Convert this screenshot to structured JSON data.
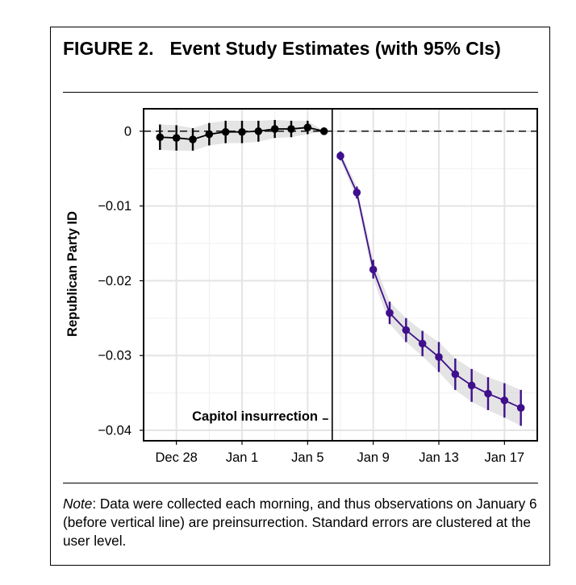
{
  "figure": {
    "label": "FIGURE 2.",
    "title": "Event Study Estimates (with 95% CIs)"
  },
  "note": {
    "lead": "Note",
    "text": ": Data were collected each morning, and thus observations on January 6 (before vertical line) are preinsurrection. Standard errors are clustered at the user level."
  },
  "chart_data": {
    "type": "line",
    "title": "Event Study Estimates (with 95% CIs)",
    "xlabel": "",
    "ylabel": "Republican Party ID",
    "x_ticks": [
      "Dec 28",
      "Jan 1",
      "Jan 5",
      "Jan 9",
      "Jan 13",
      "Jan 17"
    ],
    "y_ticks": [
      "0",
      "−0.01",
      "−0.02",
      "−0.03",
      "−0.04"
    ],
    "ylim": [
      -0.0414,
      0.003
    ],
    "xlim": [
      "Dec 26",
      "Jan 19"
    ],
    "grid": true,
    "reference_line": {
      "axis": "y",
      "value": 0,
      "style": "dashed"
    },
    "event_line": {
      "date": "Jan 6",
      "label": "Capitol insurrection"
    },
    "series": [
      {
        "segment": "pre",
        "color": "#000000",
        "points": [
          {
            "x": "Dec 27",
            "y": -0.0008,
            "lo": -0.0025,
            "hi": 0.0009
          },
          {
            "x": "Dec 28",
            "y": -0.0009,
            "lo": -0.0026,
            "hi": 0.0008
          },
          {
            "x": "Dec 29",
            "y": -0.0011,
            "lo": -0.0026,
            "hi": 0.0004
          },
          {
            "x": "Dec 30",
            "y": -0.0004,
            "lo": -0.0019,
            "hi": 0.0011
          },
          {
            "x": "Dec 31",
            "y": -0.0001,
            "lo": -0.0016,
            "hi": 0.0014
          },
          {
            "x": "Jan 1",
            "y": -0.0001,
            "lo": -0.0016,
            "hi": 0.0014
          },
          {
            "x": "Jan 2",
            "y": 0.0,
            "lo": -0.0014,
            "hi": 0.0014
          },
          {
            "x": "Jan 3",
            "y": 0.0003,
            "lo": -0.0009,
            "hi": 0.0015
          },
          {
            "x": "Jan 4",
            "y": 0.0003,
            "lo": -0.0008,
            "hi": 0.0014
          },
          {
            "x": "Jan 5",
            "y": 0.0005,
            "lo": -0.0004,
            "hi": 0.0014
          },
          {
            "x": "Jan 6",
            "y": 0.0
          }
        ]
      },
      {
        "segment": "post",
        "color": "#3f0f8c",
        "points": [
          {
            "x": "Jan 7",
            "y": -0.0033,
            "lo": -0.0039,
            "hi": -0.0027
          },
          {
            "x": "Jan 8",
            "y": -0.0082,
            "lo": -0.009,
            "hi": -0.0074
          },
          {
            "x": "Jan 9",
            "y": -0.0185,
            "lo": -0.0197,
            "hi": -0.0172
          },
          {
            "x": "Jan 10",
            "y": -0.0243,
            "lo": -0.0258,
            "hi": -0.0228
          },
          {
            "x": "Jan 11",
            "y": -0.0266,
            "lo": -0.0282,
            "hi": -0.025
          },
          {
            "x": "Jan 12",
            "y": -0.0284,
            "lo": -0.0301,
            "hi": -0.0267
          },
          {
            "x": "Jan 13",
            "y": -0.0302,
            "lo": -0.0322,
            "hi": -0.0282
          },
          {
            "x": "Jan 14",
            "y": -0.0325,
            "lo": -0.0346,
            "hi": -0.0304
          },
          {
            "x": "Jan 15",
            "y": -0.034,
            "lo": -0.0362,
            "hi": -0.0318
          },
          {
            "x": "Jan 16",
            "y": -0.0351,
            "lo": -0.0373,
            "hi": -0.0329
          },
          {
            "x": "Jan 17",
            "y": -0.036,
            "lo": -0.0383,
            "hi": -0.0337
          },
          {
            "x": "Jan 18",
            "y": -0.037,
            "lo": -0.0394,
            "hi": -0.0346
          }
        ]
      }
    ]
  }
}
